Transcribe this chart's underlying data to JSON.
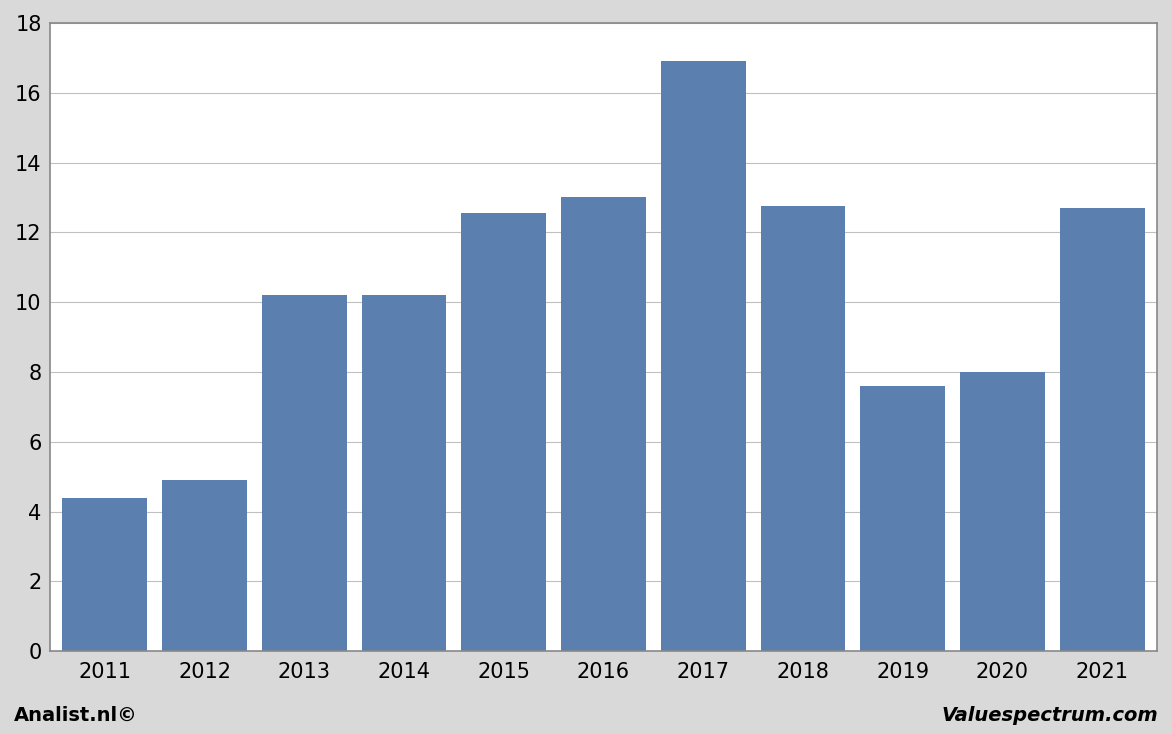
{
  "categories": [
    "2011",
    "2012",
    "2013",
    "2014",
    "2015",
    "2016",
    "2017",
    "2018",
    "2019",
    "2020",
    "2021"
  ],
  "values": [
    4.4,
    4.9,
    10.2,
    10.2,
    12.55,
    13.0,
    16.9,
    12.75,
    7.6,
    8.0,
    12.7
  ],
  "bar_color": "#5b7faf",
  "ylim": [
    0,
    18
  ],
  "yticks": [
    0,
    2,
    4,
    6,
    8,
    10,
    12,
    14,
    16,
    18
  ],
  "background_color": "#d9d9d9",
  "plot_background_color": "#ffffff",
  "grid_color": "#c0c0c0",
  "footer_left": "Analist.nl©",
  "footer_right": "Valuespectrum.com",
  "footer_fontsize": 14,
  "bar_edge_color": "none",
  "tick_label_fontsize": 15,
  "figure_border_color": "#888888",
  "bar_width": 0.85
}
